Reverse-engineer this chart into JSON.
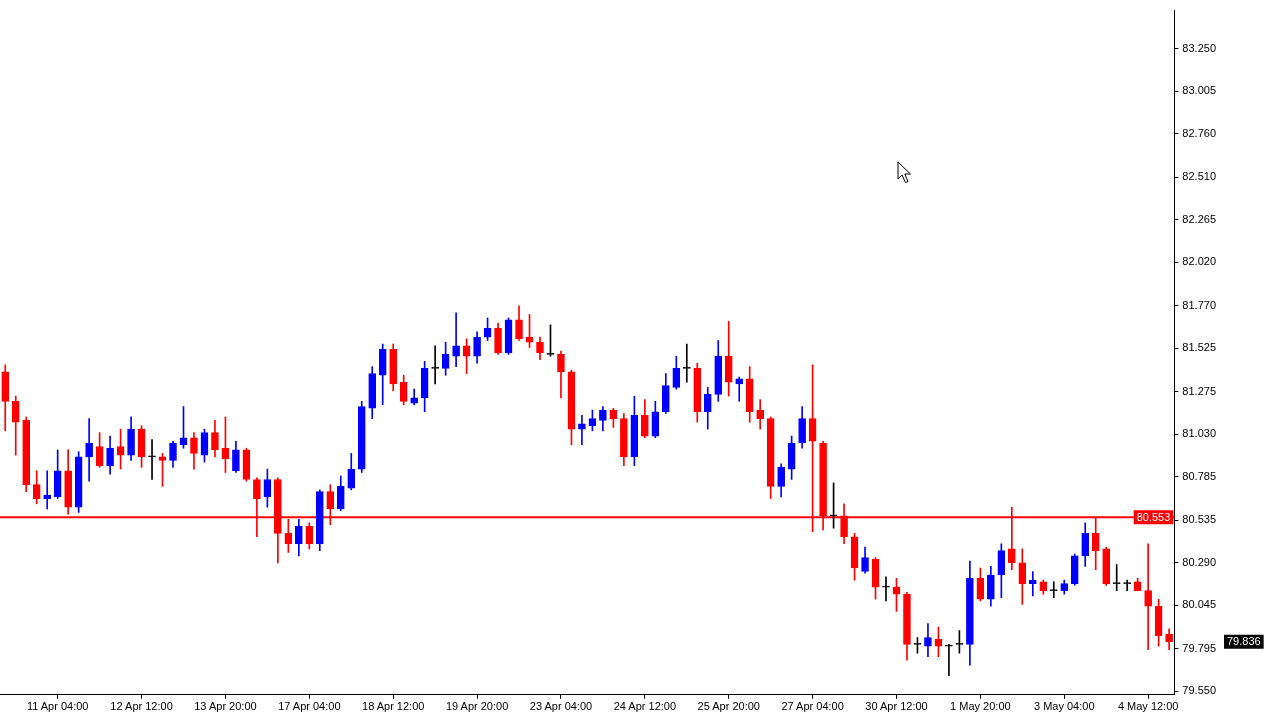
{
  "chart_data": {
    "type": "candlestick",
    "categories": [
      null,
      null,
      null,
      null,
      null,
      "11 Apr 04:00",
      null,
      null,
      null,
      null,
      null,
      null,
      null,
      "12 Apr 12:00",
      null,
      null,
      null,
      null,
      null,
      null,
      null,
      "13 Apr 20:00",
      null,
      null,
      null,
      null,
      null,
      null,
      null,
      "17 Apr 04:00",
      null,
      null,
      null,
      null,
      null,
      null,
      null,
      "18 Apr 12:00",
      null,
      null,
      null,
      null,
      null,
      null,
      null,
      "19 Apr 20:00",
      null,
      null,
      null,
      null,
      null,
      null,
      null,
      "23 Apr 04:00",
      null,
      null,
      null,
      null,
      null,
      null,
      null,
      "24 Apr 12:00",
      null,
      null,
      null,
      null,
      null,
      null,
      null,
      "25 Apr 20:00",
      null,
      null,
      null,
      null,
      null,
      null,
      null,
      "27 Apr 04:00",
      null,
      null,
      null,
      null,
      null,
      null,
      null,
      "30 Apr 12:00",
      null,
      null,
      null,
      null,
      null,
      null,
      null,
      "1 May 20:00",
      null,
      null,
      null,
      null,
      null,
      null,
      null,
      "3 May 04:00",
      null,
      null,
      null,
      null,
      null,
      null,
      null,
      "4 May 12:00",
      null,
      null
    ],
    "ohlc": [
      [
        81.39,
        81.43,
        81.05,
        81.22
      ],
      [
        81.22,
        81.25,
        80.91,
        81.1
      ],
      [
        81.11,
        81.13,
        80.7,
        80.74
      ],
      [
        80.74,
        80.82,
        80.63,
        80.66
      ],
      [
        80.66,
        80.82,
        80.6,
        80.68
      ],
      [
        80.67,
        80.94,
        80.66,
        80.82
      ],
      [
        80.82,
        80.94,
        80.57,
        80.61
      ],
      [
        80.61,
        80.93,
        80.58,
        80.9
      ],
      [
        80.9,
        81.12,
        80.76,
        80.98
      ],
      [
        80.96,
        81.04,
        80.84,
        80.85
      ],
      [
        80.85,
        81.02,
        80.8,
        80.95
      ],
      [
        80.96,
        81.06,
        80.83,
        80.91
      ],
      [
        80.91,
        81.13,
        80.88,
        81.06
      ],
      [
        81.06,
        81.08,
        80.84,
        80.9
      ],
      [
        80.9,
        81.0,
        80.77,
        80.9
      ],
      [
        80.9,
        80.92,
        80.73,
        80.88
      ],
      [
        80.88,
        80.99,
        80.84,
        80.98
      ],
      [
        80.97,
        81.19,
        80.95,
        81.01
      ],
      [
        81.01,
        81.04,
        80.83,
        80.92
      ],
      [
        80.91,
        81.06,
        80.87,
        81.04
      ],
      [
        81.04,
        81.11,
        80.9,
        80.94
      ],
      [
        80.95,
        81.13,
        80.81,
        80.89
      ],
      [
        80.82,
        80.99,
        80.81,
        80.94
      ],
      [
        80.94,
        80.95,
        80.76,
        80.77
      ],
      [
        80.77,
        80.78,
        80.44,
        80.66
      ],
      [
        80.67,
        80.83,
        80.61,
        80.77
      ],
      [
        80.77,
        80.78,
        80.29,
        80.46
      ],
      [
        80.46,
        80.54,
        80.35,
        80.4
      ],
      [
        80.4,
        80.54,
        80.33,
        80.5
      ],
      [
        80.5,
        80.52,
        80.37,
        80.4
      ],
      [
        80.4,
        80.71,
        80.36,
        80.7
      ],
      [
        80.7,
        80.74,
        80.51,
        80.6
      ],
      [
        80.6,
        80.79,
        80.59,
        80.73
      ],
      [
        80.72,
        80.92,
        80.71,
        80.83
      ],
      [
        80.83,
        81.22,
        80.81,
        81.19
      ],
      [
        81.18,
        81.42,
        81.12,
        81.38
      ],
      [
        81.37,
        81.55,
        81.2,
        81.52
      ],
      [
        81.52,
        81.55,
        81.28,
        81.32
      ],
      [
        81.33,
        81.37,
        81.2,
        81.22
      ],
      [
        81.21,
        81.29,
        81.2,
        81.24
      ],
      [
        81.24,
        81.45,
        81.16,
        81.41
      ],
      [
        81.41,
        81.54,
        81.32,
        81.41
      ],
      [
        81.41,
        81.56,
        81.37,
        81.49
      ],
      [
        81.48,
        81.73,
        81.42,
        81.54
      ],
      [
        81.54,
        81.58,
        81.38,
        81.48
      ],
      [
        81.48,
        81.62,
        81.44,
        81.59
      ],
      [
        81.59,
        81.7,
        81.57,
        81.64
      ],
      [
        81.64,
        81.67,
        81.49,
        81.5
      ],
      [
        81.5,
        81.7,
        81.49,
        81.69
      ],
      [
        81.69,
        81.77,
        81.57,
        81.58
      ],
      [
        81.59,
        81.72,
        81.53,
        81.56
      ],
      [
        81.56,
        81.59,
        81.46,
        81.5
      ],
      [
        81.49,
        81.66,
        81.48,
        81.49
      ],
      [
        81.49,
        81.51,
        81.24,
        81.39
      ],
      [
        81.39,
        81.4,
        80.97,
        81.06
      ],
      [
        81.06,
        81.14,
        80.97,
        81.09
      ],
      [
        81.08,
        81.17,
        81.05,
        81.12
      ],
      [
        81.11,
        81.19,
        81.05,
        81.17
      ],
      [
        81.17,
        81.18,
        81.07,
        81.12
      ],
      [
        81.12,
        81.15,
        80.85,
        80.9
      ],
      [
        80.9,
        81.25,
        80.85,
        81.14
      ],
      [
        81.14,
        81.23,
        81.01,
        81.02
      ],
      [
        81.02,
        81.22,
        81.01,
        81.16
      ],
      [
        81.16,
        81.38,
        81.15,
        81.31
      ],
      [
        81.3,
        81.48,
        81.29,
        81.41
      ],
      [
        81.41,
        81.55,
        81.33,
        81.41
      ],
      [
        81.41,
        81.44,
        81.1,
        81.16
      ],
      [
        81.16,
        81.3,
        81.06,
        81.26
      ],
      [
        81.26,
        81.57,
        81.22,
        81.48
      ],
      [
        81.48,
        81.68,
        81.25,
        81.33
      ],
      [
        81.32,
        81.36,
        81.22,
        81.35
      ],
      [
        81.35,
        81.42,
        81.1,
        81.16
      ],
      [
        81.17,
        81.23,
        81.06,
        81.12
      ],
      [
        81.12,
        81.13,
        80.66,
        80.73
      ],
      [
        80.73,
        80.86,
        80.67,
        80.84
      ],
      [
        80.83,
        81.02,
        80.77,
        80.98
      ],
      [
        80.98,
        81.19,
        80.95,
        81.12
      ],
      [
        81.12,
        81.43,
        80.47,
        80.99
      ],
      [
        80.98,
        80.99,
        80.48,
        80.56
      ],
      [
        80.56,
        80.75,
        80.49,
        80.56
      ],
      [
        80.56,
        80.63,
        80.4,
        80.44
      ],
      [
        80.44,
        80.46,
        80.19,
        80.26
      ],
      [
        80.24,
        80.38,
        80.23,
        80.32
      ],
      [
        80.31,
        80.32,
        80.08,
        80.15
      ],
      [
        80.15,
        80.21,
        80.07,
        80.15
      ],
      [
        80.15,
        80.2,
        80.01,
        80.11
      ],
      [
        80.11,
        80.12,
        79.73,
        79.82
      ],
      [
        79.82,
        79.86,
        79.77,
        79.82
      ],
      [
        79.81,
        79.94,
        79.75,
        79.86
      ],
      [
        79.85,
        79.92,
        79.75,
        79.81
      ],
      [
        79.81,
        79.82,
        79.64,
        79.81
      ],
      [
        79.82,
        79.9,
        79.77,
        79.82
      ],
      [
        79.82,
        80.3,
        79.7,
        80.2
      ],
      [
        80.2,
        80.26,
        80.07,
        80.08
      ],
      [
        80.08,
        80.27,
        80.04,
        80.22
      ],
      [
        80.22,
        80.4,
        80.09,
        80.36
      ],
      [
        80.37,
        80.61,
        80.25,
        80.29
      ],
      [
        80.29,
        80.37,
        80.05,
        80.17
      ],
      [
        80.17,
        80.24,
        80.1,
        80.19
      ],
      [
        80.18,
        80.19,
        80.11,
        80.13
      ],
      [
        80.13,
        80.18,
        80.09,
        80.13
      ],
      [
        80.13,
        80.19,
        80.11,
        80.17
      ],
      [
        80.17,
        80.34,
        80.16,
        80.33
      ],
      [
        80.33,
        80.52,
        80.27,
        80.46
      ],
      [
        80.46,
        80.55,
        80.25,
        80.36
      ],
      [
        80.37,
        80.38,
        80.16,
        80.17
      ],
      [
        80.17,
        80.28,
        80.13,
        80.17
      ],
      [
        80.17,
        80.19,
        80.13,
        80.17
      ],
      [
        80.18,
        80.2,
        80.13,
        80.13
      ],
      [
        80.13,
        80.4,
        79.79,
        80.04
      ],
      [
        80.04,
        80.08,
        79.81,
        79.87
      ],
      [
        79.88,
        79.91,
        79.79,
        79.836
      ]
    ],
    "colors": [
      "#ff0000",
      "#ff0000",
      "#ff0000",
      "#ff0000",
      "#0000ff",
      "#0000ff",
      "#ff0000",
      "#0000ff",
      "#0000ff",
      "#ff0000",
      "#0000ff",
      "#ff0000",
      "#0000ff",
      "#ff0000",
      "#000000",
      "#ff0000",
      "#0000ff",
      "#0000ff",
      "#ff0000",
      "#0000ff",
      "#ff0000",
      "#ff0000",
      "#0000ff",
      "#ff0000",
      "#ff0000",
      "#0000ff",
      "#ff0000",
      "#ff0000",
      "#0000ff",
      "#ff0000",
      "#0000ff",
      "#ff0000",
      "#0000ff",
      "#0000ff",
      "#0000ff",
      "#0000ff",
      "#0000ff",
      "#ff0000",
      "#ff0000",
      "#0000ff",
      "#0000ff",
      "#000000",
      "#0000ff",
      "#0000ff",
      "#ff0000",
      "#0000ff",
      "#0000ff",
      "#ff0000",
      "#0000ff",
      "#ff0000",
      "#ff0000",
      "#ff0000",
      "#000000",
      "#ff0000",
      "#ff0000",
      "#0000ff",
      "#0000ff",
      "#0000ff",
      "#ff0000",
      "#ff0000",
      "#0000ff",
      "#ff0000",
      "#0000ff",
      "#0000ff",
      "#0000ff",
      "#000000",
      "#ff0000",
      "#0000ff",
      "#0000ff",
      "#ff0000",
      "#0000ff",
      "#ff0000",
      "#ff0000",
      "#ff0000",
      "#0000ff",
      "#0000ff",
      "#0000ff",
      "#ff0000",
      "#ff0000",
      "#000000",
      "#ff0000",
      "#ff0000",
      "#0000ff",
      "#ff0000",
      "#000000",
      "#ff0000",
      "#ff0000",
      "#000000",
      "#0000ff",
      "#ff0000",
      "#000000",
      "#000000",
      "#0000ff",
      "#ff0000",
      "#0000ff",
      "#0000ff",
      "#ff0000",
      "#ff0000",
      "#0000ff",
      "#ff0000",
      "#000000",
      "#0000ff",
      "#0000ff",
      "#0000ff",
      "#ff0000",
      "#ff0000",
      "#000000",
      "#000000",
      "#ff0000",
      "#ff0000",
      "#ff0000",
      "#ff0000"
    ],
    "ylim": [
      79.53,
      83.47
    ],
    "yticks": [
      {
        "value": 83.25,
        "label": "83.250"
      },
      83.005,
      {
        "value": 82.76,
        "label": "82.760"
      },
      {
        "value": 82.51,
        "label": "82.510"
      },
      82.265,
      {
        "value": 82.02,
        "label": "82.020"
      },
      {
        "value": 81.77,
        "label": "81.770"
      },
      81.525,
      81.275,
      {
        "value": 81.03,
        "label": "81.030"
      },
      80.785,
      80.535,
      {
        "value": 80.29,
        "label": "80.290"
      },
      80.045,
      79.795,
      {
        "value": 79.55,
        "label": "79.550"
      }
    ],
    "ref_lines": [
      {
        "axis": "y",
        "value": 80.553,
        "label": "80.553",
        "color": "#ff0000"
      }
    ],
    "annotations": [
      "79.836"
    ]
  }
}
